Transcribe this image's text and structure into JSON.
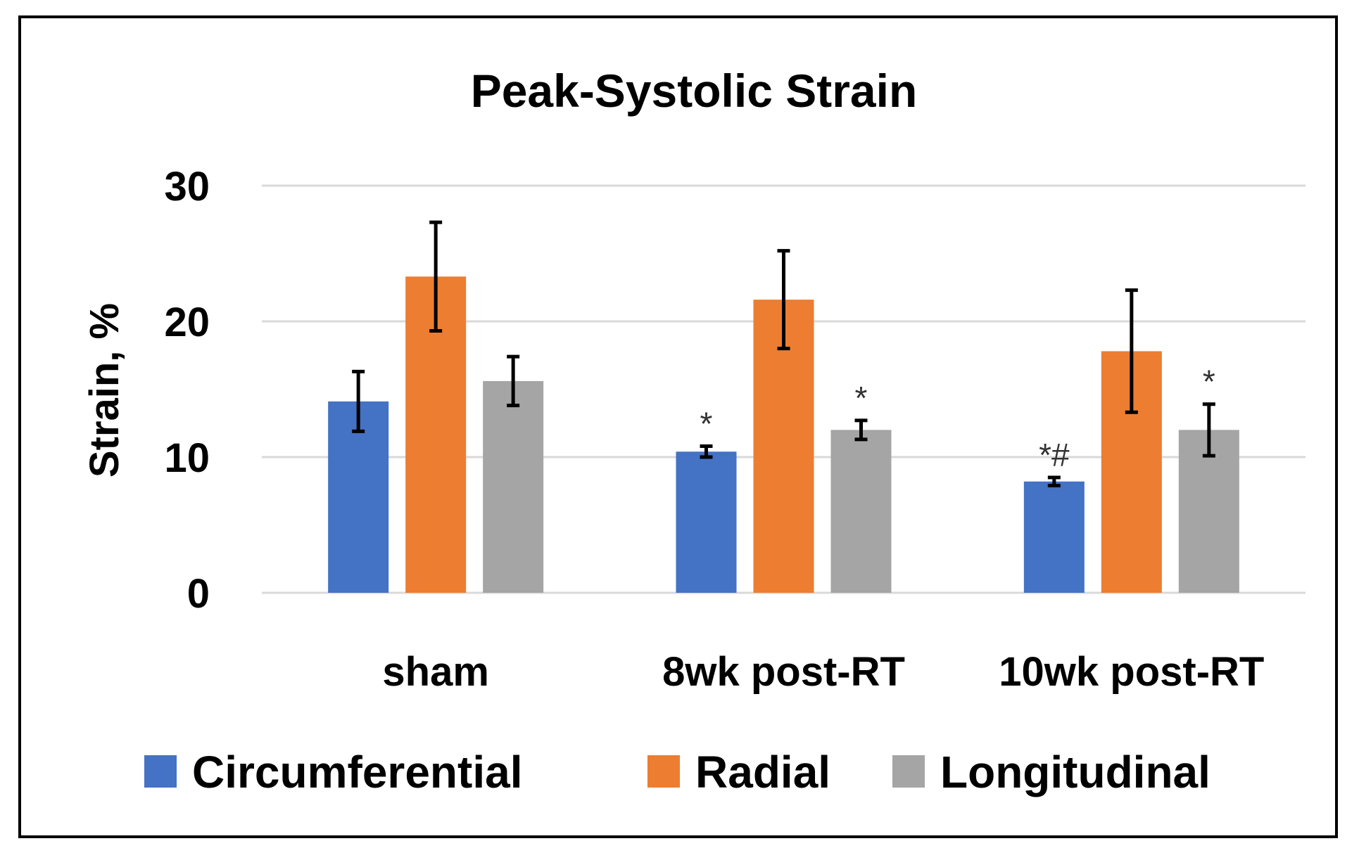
{
  "chart_data": {
    "type": "bar",
    "title": "Peak-Systolic Strain",
    "xlabel": "",
    "ylabel": "Strain, %",
    "ylim": [
      0,
      30
    ],
    "yticks": [
      0,
      10,
      20,
      30
    ],
    "grid": true,
    "legend_position": "bottom",
    "categories": [
      "sham",
      "8wk post-RT",
      "10wk post-RT"
    ],
    "series": [
      {
        "name": "Circumferential",
        "color": "#4472C4",
        "values": [
          14.1,
          10.4,
          8.2
        ],
        "errors": [
          2.2,
          0.4,
          0.3
        ],
        "annotations": [
          "",
          "*",
          "*#"
        ]
      },
      {
        "name": "Radial",
        "color": "#ED7D31",
        "values": [
          23.3,
          21.6,
          17.8
        ],
        "errors": [
          4.0,
          3.6,
          4.5
        ],
        "annotations": [
          "",
          "",
          ""
        ]
      },
      {
        "name": "Longitudinal",
        "color": "#A5A5A5",
        "values": [
          15.6,
          12.0,
          12.0
        ],
        "errors": [
          1.8,
          0.7,
          1.9
        ],
        "annotations": [
          "",
          "*",
          "*"
        ]
      }
    ]
  }
}
